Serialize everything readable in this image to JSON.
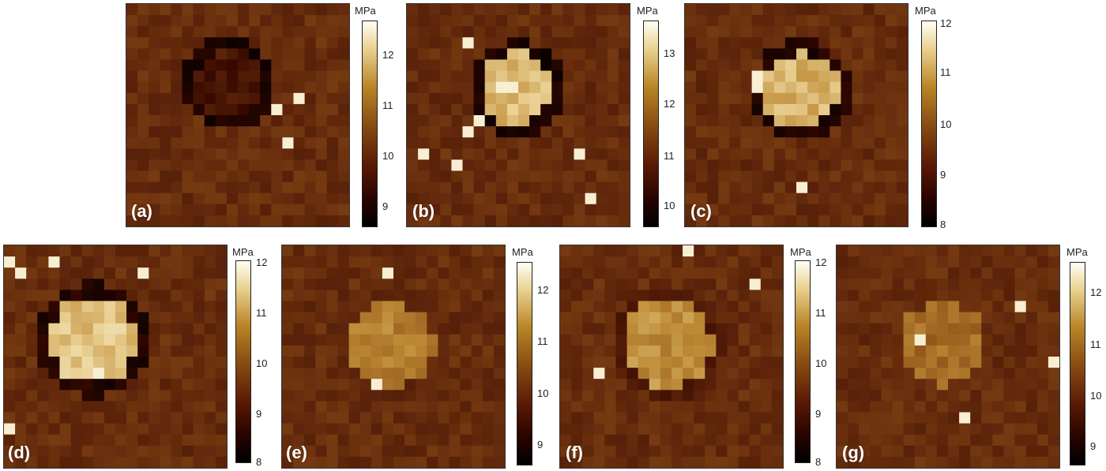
{
  "unit": "MPa",
  "panels": [
    {
      "id": "a",
      "label": "(a)",
      "ticks": [
        "12",
        "11",
        "10",
        "9"
      ],
      "type": "dark"
    },
    {
      "id": "b",
      "label": "(b)",
      "ticks": [
        "13",
        "12",
        "11",
        "10"
      ],
      "type": "bright-ring"
    },
    {
      "id": "c",
      "label": "(c)",
      "ticks": [
        "12",
        "11",
        "10",
        "9",
        "8"
      ],
      "type": "bright-ring"
    },
    {
      "id": "d",
      "label": "(d)",
      "ticks": [
        "12",
        "11",
        "10",
        "9",
        "8"
      ],
      "type": "bright-ring"
    },
    {
      "id": "e",
      "label": "(e)",
      "ticks": [
        "12",
        "11",
        "10",
        "9"
      ],
      "type": "medium"
    },
    {
      "id": "f",
      "label": "(f)",
      "ticks": [
        "12",
        "11",
        "10",
        "9",
        "8"
      ],
      "type": "medium"
    },
    {
      "id": "g",
      "label": "(g)",
      "ticks": [
        "12",
        "11",
        "10",
        "9"
      ],
      "type": "soft"
    }
  ]
}
